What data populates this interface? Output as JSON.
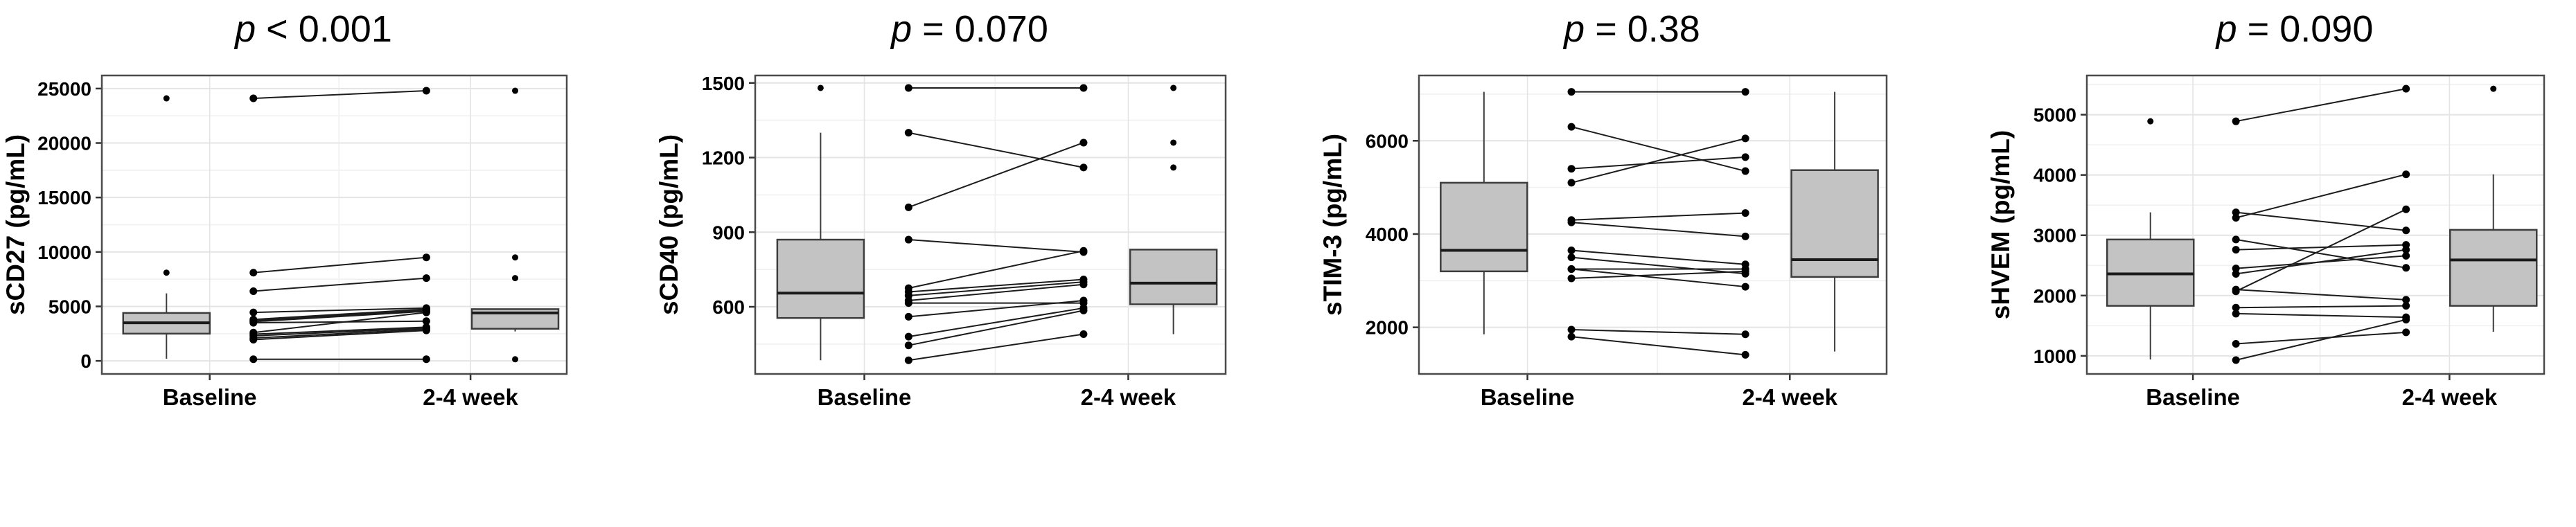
{
  "figure": {
    "background": "#ffffff",
    "x_categories": [
      "Baseline",
      "2-4 week"
    ]
  },
  "style": {
    "panel_border_color": "#4a4a4a",
    "grid_major_color": "#e4e4e4",
    "grid_minor_color": "#f0f0f0",
    "box_fill": "#c3c3c3",
    "box_stroke": "#3d3d3d",
    "median_color": "#1a1a1a",
    "point_color": "#000000",
    "pair_line_color": "#1c1c1c",
    "text_color": "#000000"
  },
  "chart_data": [
    {
      "type": "boxplot-paired",
      "title": "p < 0.001",
      "title_italic": "p",
      "title_rest": " < 0.001",
      "ylabel": "sCD27 (pg/mL)",
      "xlabel": "",
      "x_categories": [
        "Baseline",
        "2-4 week"
      ],
      "yticks": [
        0,
        5000,
        10000,
        15000,
        20000,
        25000
      ],
      "ylim": [
        -1200,
        26200
      ],
      "grid": true,
      "baseline_box": {
        "q1": 2500,
        "median": 3500,
        "q3": 4400,
        "whisker_low": 200,
        "whisker_high": 6200,
        "outliers": [
          24100,
          8100
        ]
      },
      "week_box": {
        "q1": 2950,
        "median": 4400,
        "q3": 4750,
        "whisker_low": 2700,
        "whisker_high": 4750,
        "outliers": [
          24800,
          9500,
          7600,
          150
        ]
      },
      "pairs": [
        [
          24100,
          24800
        ],
        [
          8100,
          9500
        ],
        [
          6400,
          7600
        ],
        [
          4450,
          4850
        ],
        [
          3800,
          4750
        ],
        [
          3700,
          4650
        ],
        [
          3600,
          4550
        ],
        [
          3500,
          3650
        ],
        [
          2600,
          4450
        ],
        [
          2450,
          3100
        ],
        [
          2300,
          3000
        ],
        [
          2100,
          2900
        ],
        [
          1950,
          2800
        ],
        [
          150,
          150
        ]
      ]
    },
    {
      "type": "boxplot-paired",
      "title": "p = 0.070",
      "title_italic": "p",
      "title_rest": " = 0.070",
      "ylabel": "sCD40 (pg/mL)",
      "xlabel": "",
      "x_categories": [
        "Baseline",
        "2-4 week"
      ],
      "yticks": [
        600,
        900,
        1200,
        1500
      ],
      "ylim": [
        330,
        1530
      ],
      "grid": true,
      "baseline_box": {
        "q1": 555,
        "median": 655,
        "q3": 870,
        "whisker_low": 385,
        "whisker_high": 1300,
        "outliers": [
          1480
        ]
      },
      "week_box": {
        "q1": 610,
        "median": 695,
        "q3": 830,
        "whisker_low": 490,
        "whisker_high": 830,
        "outliers": [
          1480,
          1260,
          1160
        ]
      },
      "pairs": [
        [
          1480,
          1480
        ],
        [
          1300,
          1160
        ],
        [
          1000,
          1260
        ],
        [
          870,
          820
        ],
        [
          675,
          825
        ],
        [
          660,
          710
        ],
        [
          645,
          700
        ],
        [
          625,
          690
        ],
        [
          615,
          615
        ],
        [
          560,
          625
        ],
        [
          480,
          595
        ],
        [
          445,
          585
        ],
        [
          385,
          490
        ]
      ]
    },
    {
      "type": "boxplot-paired",
      "title": "p = 0.38",
      "title_italic": "p",
      "title_rest": " = 0.38",
      "ylabel": "sTIM-3 (pg/mL)",
      "xlabel": "",
      "x_categories": [
        "Baseline",
        "2-4 week"
      ],
      "yticks": [
        2000,
        4000,
        6000
      ],
      "ylim": [
        1000,
        7400
      ],
      "grid": true,
      "baseline_box": {
        "q1": 3200,
        "median": 3650,
        "q3": 5100,
        "whisker_low": 1850,
        "whisker_high": 7050,
        "outliers": []
      },
      "week_box": {
        "q1": 3080,
        "median": 3450,
        "q3": 5370,
        "whisker_low": 1480,
        "whisker_high": 7050,
        "outliers": []
      },
      "pairs": [
        [
          7050,
          7050
        ],
        [
          6300,
          5350
        ],
        [
          5400,
          5650
        ],
        [
          5100,
          6050
        ],
        [
          4300,
          4450
        ],
        [
          4250,
          3950
        ],
        [
          3650,
          3350
        ],
        [
          3500,
          3150
        ],
        [
          3250,
          3250
        ],
        [
          3250,
          2870
        ],
        [
          3050,
          3200
        ],
        [
          1950,
          1850
        ],
        [
          1800,
          1410
        ]
      ]
    },
    {
      "type": "boxplot-paired",
      "title": "p = 0.090",
      "title_italic": "p",
      "title_rest": " = 0.090",
      "ylabel": "sHVEM (pg/mL)",
      "xlabel": "",
      "x_categories": [
        "Baseline",
        "2-4 week"
      ],
      "yticks": [
        1000,
        2000,
        3000,
        4000,
        5000
      ],
      "ylim": [
        700,
        5650
      ],
      "grid": true,
      "baseline_box": {
        "q1": 1830,
        "median": 2360,
        "q3": 2930,
        "whisker_low": 940,
        "whisker_high": 3380,
        "outliers": [
          4890
        ]
      },
      "week_box": {
        "q1": 1830,
        "median": 2590,
        "q3": 3090,
        "whisker_low": 1400,
        "whisker_high": 4010,
        "outliers": [
          5430
        ]
      },
      "pairs": [
        [
          4890,
          5430
        ],
        [
          3380,
          3080
        ],
        [
          3290,
          4010
        ],
        [
          2930,
          2460
        ],
        [
          2760,
          2840
        ],
        [
          2450,
          2660
        ],
        [
          2360,
          2760
        ],
        [
          2100,
          1930
        ],
        [
          2070,
          3430
        ],
        [
          1800,
          1830
        ],
        [
          1700,
          1640
        ],
        [
          1200,
          1390
        ],
        [
          930,
          1600
        ]
      ]
    }
  ]
}
